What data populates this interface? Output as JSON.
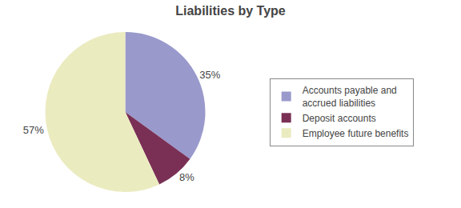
{
  "chart_data": {
    "type": "pie",
    "title": "Liabilities by Type",
    "categories": [
      "Accounts payable and\naccrued liabilities",
      "Deposit accounts",
      "Employee future benefits"
    ],
    "values": [
      35,
      8,
      57
    ],
    "value_labels": [
      "35%",
      "8%",
      "57%"
    ],
    "colors": [
      "#9999cc",
      "#7a3055",
      "#ebebc0"
    ],
    "data_labels": true,
    "legend": "right"
  }
}
